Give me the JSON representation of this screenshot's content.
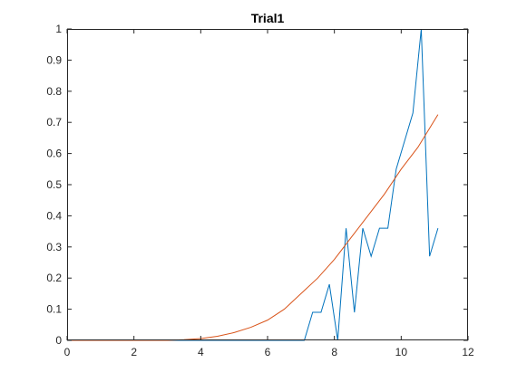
{
  "chart_data": {
    "type": "line",
    "title": "Trial1",
    "xlabel": "",
    "ylabel": "",
    "xlim": [
      0,
      12
    ],
    "ylim": [
      0,
      1
    ],
    "xticks": [
      0,
      2,
      4,
      6,
      8,
      10,
      12
    ],
    "yticks": [
      0,
      0.1,
      0.2,
      0.3,
      0.4,
      0.5,
      0.6,
      0.7,
      0.8,
      0.9,
      1
    ],
    "grid": false,
    "legend": "none",
    "series": [
      {
        "color": "#0072BD",
        "x": [
          0,
          1,
          2,
          3,
          4,
          5,
          6,
          7,
          7.1,
          7.35,
          7.6,
          7.85,
          8.1,
          8.35,
          8.6,
          8.85,
          9.1,
          9.35,
          9.6,
          9.85,
          10.1,
          10.35,
          10.6,
          10.85,
          11.1
        ],
        "y": [
          0,
          0,
          0,
          0,
          0,
          0,
          0,
          0,
          0,
          0.09,
          0.09,
          0.18,
          0,
          0.36,
          0.09,
          0.36,
          0.27,
          0.36,
          0.36,
          0.55,
          0.64,
          0.73,
          1.0,
          0.27,
          0.36
        ]
      },
      {
        "color": "#D95319",
        "x": [
          0,
          1,
          2,
          3,
          3.5,
          4,
          4.5,
          5,
          5.5,
          6,
          6.5,
          7,
          7.5,
          8,
          8.5,
          9,
          9.5,
          10,
          10.5,
          11.1
        ],
        "y": [
          0,
          0,
          0,
          0,
          0.002,
          0.006,
          0.013,
          0.025,
          0.042,
          0.065,
          0.1,
          0.15,
          0.2,
          0.26,
          0.33,
          0.4,
          0.47,
          0.55,
          0.62,
          0.725
        ]
      }
    ]
  }
}
